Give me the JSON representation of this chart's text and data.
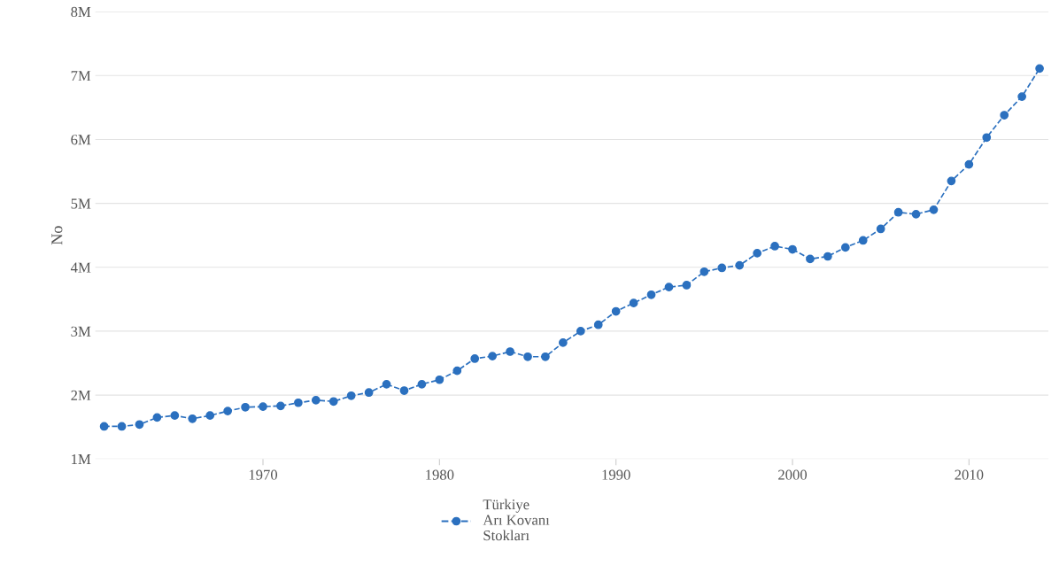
{
  "chart_data": {
    "type": "line",
    "ylabel": "No",
    "x": [
      1961,
      1962,
      1963,
      1964,
      1965,
      1966,
      1967,
      1968,
      1969,
      1970,
      1971,
      1972,
      1973,
      1974,
      1975,
      1976,
      1977,
      1978,
      1979,
      1980,
      1981,
      1982,
      1983,
      1984,
      1985,
      1986,
      1987,
      1988,
      1989,
      1990,
      1991,
      1992,
      1993,
      1994,
      1995,
      1996,
      1997,
      1998,
      1999,
      2000,
      2001,
      2002,
      2003,
      2004,
      2005,
      2006,
      2007,
      2008,
      2009,
      2010,
      2011,
      2012,
      2013,
      2014
    ],
    "series": [
      {
        "name": "Türkiye\nArı Kovanı\nStokları",
        "color": "#2b70bf",
        "values": [
          1510000,
          1510000,
          1540000,
          1650000,
          1680000,
          1630000,
          1680000,
          1750000,
          1810000,
          1820000,
          1830000,
          1880000,
          1920000,
          1900000,
          1990000,
          2040000,
          2170000,
          2070000,
          2170000,
          2240000,
          2380000,
          2570000,
          2610000,
          2680000,
          2600000,
          2600000,
          2820000,
          3000000,
          3100000,
          3310000,
          3440000,
          3570000,
          3690000,
          3720000,
          3930000,
          3990000,
          4030000,
          4220000,
          4330000,
          4280000,
          4130000,
          4170000,
          4310000,
          4420000,
          4600000,
          4860000,
          4830000,
          4900000,
          5350000,
          5610000,
          6030000,
          6380000,
          6670000,
          7110000
        ]
      }
    ],
    "xlim": [
      1960.5,
      2014.5
    ],
    "xticks": [
      1970,
      1980,
      1990,
      2000,
      2010
    ],
    "ylim": [
      1000000,
      8000000
    ],
    "yticks": [
      {
        "value": 1000000,
        "label": "1M"
      },
      {
        "value": 2000000,
        "label": "2M"
      },
      {
        "value": 3000000,
        "label": "3M"
      },
      {
        "value": 4000000,
        "label": "4M"
      },
      {
        "value": 5000000,
        "label": "5M"
      },
      {
        "value": 6000000,
        "label": "6M"
      },
      {
        "value": 7000000,
        "label": "7M"
      },
      {
        "value": 8000000,
        "label": "8M"
      }
    ],
    "grid": "y",
    "legend": "bottom",
    "marker": "circle",
    "line_style": "dashed"
  }
}
